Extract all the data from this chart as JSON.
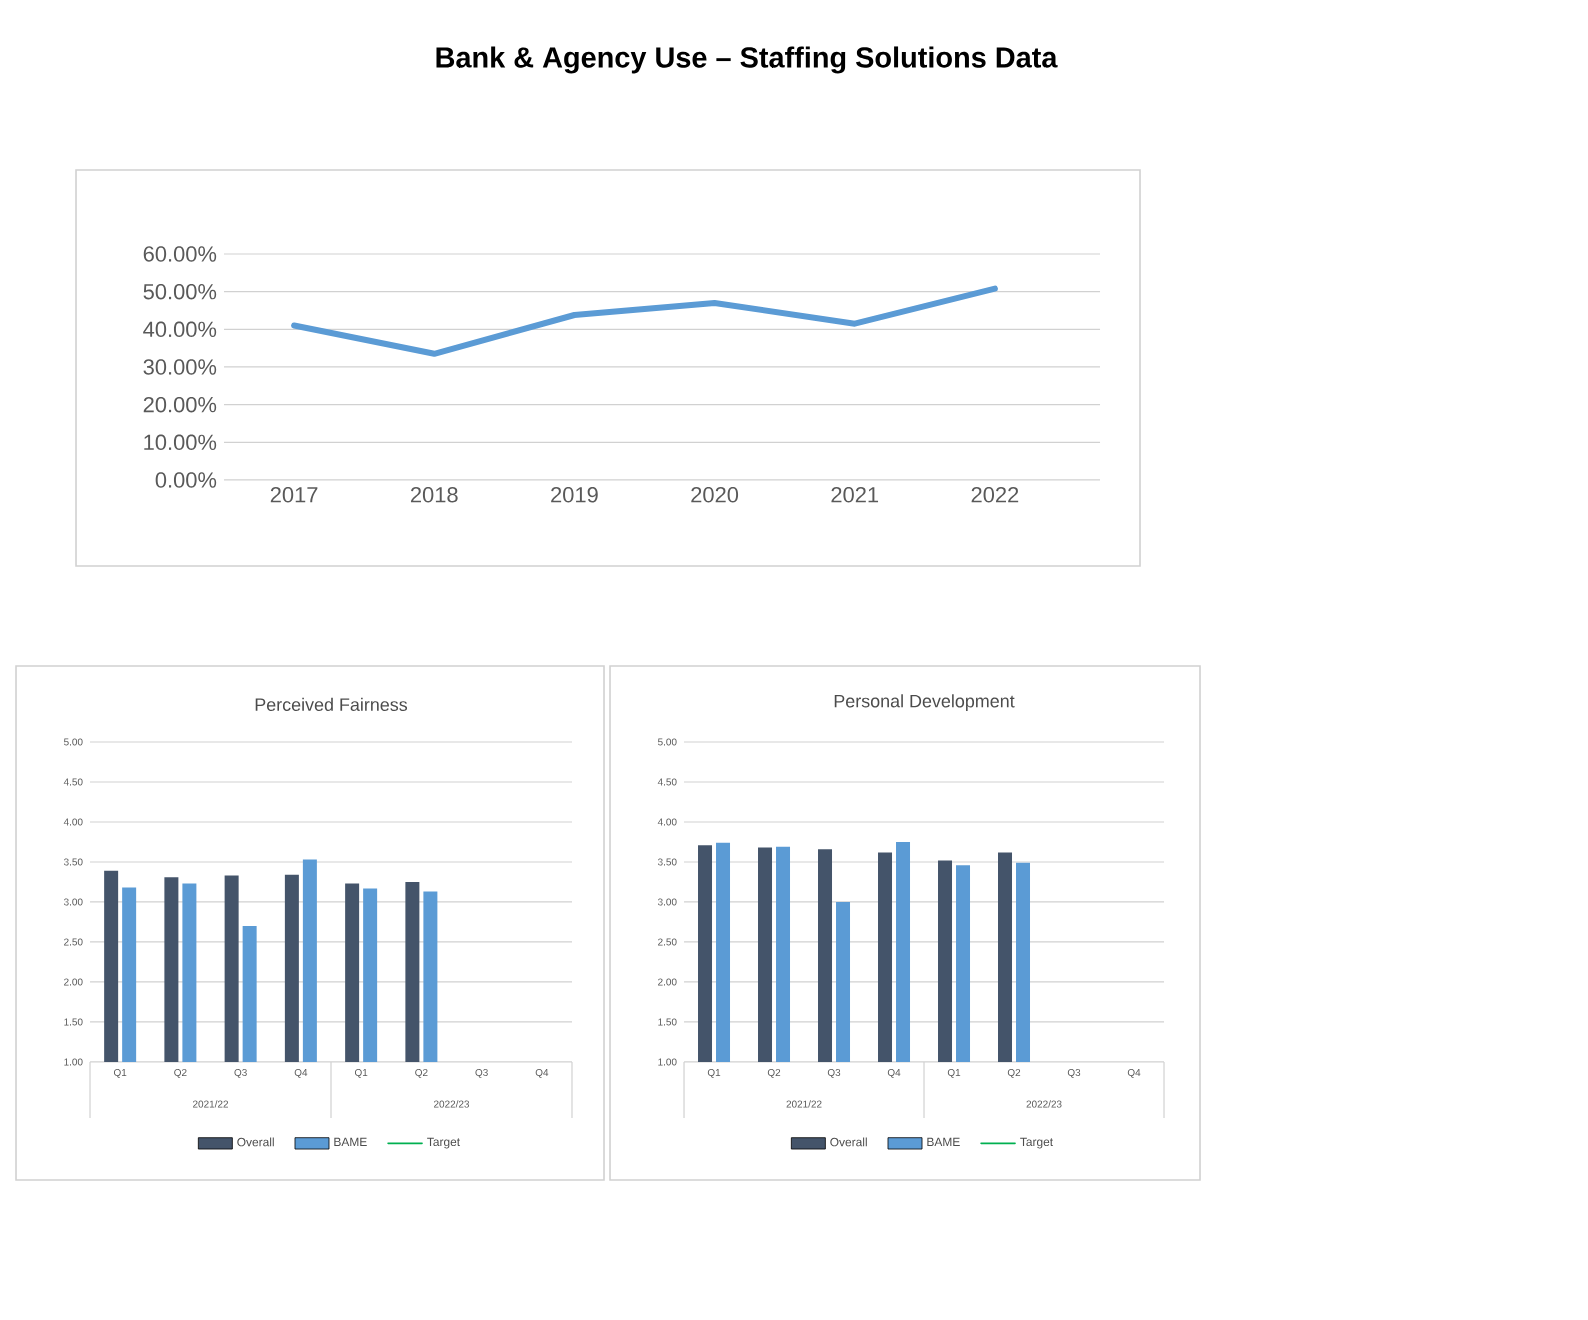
{
  "chart_data": [
    {
      "type": "line",
      "title": "Bank & Agency Use – Staffing Solutions Data",
      "categories": [
        "2017",
        "2018",
        "2019",
        "2020",
        "2021",
        "2022"
      ],
      "series": [
        {
          "color": "#5b9bd5",
          "values": [
            41.0,
            33.5,
            43.8,
            47.0,
            41.5,
            50.8
          ]
        }
      ],
      "ylim": [
        0,
        60
      ],
      "yticks": [
        {
          "value": 0,
          "label": "0.00%"
        },
        {
          "value": 10,
          "label": "10.00%"
        },
        {
          "value": 20,
          "label": "20.00%"
        },
        {
          "value": 30,
          "label": "30.00%"
        },
        {
          "value": 40,
          "label": "40.00%"
        },
        {
          "value": 50,
          "label": "50.00%"
        },
        {
          "value": 60,
          "label": "60.00%"
        }
      ],
      "grid": "y",
      "legend": false
    },
    {
      "type": "bar",
      "title": "Perceived Fairness",
      "categories": [
        "Q1",
        "Q2",
        "Q3",
        "Q4",
        "Q1",
        "Q2",
        "Q3",
        "Q4"
      ],
      "series": [
        {
          "name": "Overall",
          "color": "#44546a",
          "values": [
            3.39,
            3.31,
            3.33,
            3.34,
            3.23,
            3.25,
            null,
            null
          ]
        },
        {
          "name": "BAME",
          "color": "#5b9bd5",
          "values": [
            3.18,
            3.23,
            2.7,
            3.53,
            3.17,
            3.13,
            null,
            null
          ]
        },
        {
          "name": "Target",
          "type": "line",
          "color": "#00b050",
          "values": [
            null,
            null,
            null,
            null,
            null,
            null,
            null,
            null
          ]
        }
      ],
      "ylim": [
        1,
        5
      ],
      "yticks": [
        {
          "value": 1,
          "label": "1.00"
        },
        {
          "value": 1.5,
          "label": "1.50"
        },
        {
          "value": 2,
          "label": "2.00"
        },
        {
          "value": 2.5,
          "label": "2.50"
        },
        {
          "value": 3,
          "label": "3.00"
        },
        {
          "value": 3.5,
          "label": "3.50"
        },
        {
          "value": 4,
          "label": "4.00"
        },
        {
          "value": 4.5,
          "label": "4.50"
        },
        {
          "value": 5,
          "label": "5.00"
        }
      ],
      "annotations": [
        "2021/22",
        "2022/23"
      ],
      "grid": "y",
      "legend": "bottom"
    },
    {
      "type": "bar",
      "title": "Personal Development",
      "categories": [
        "Q1",
        "Q2",
        "Q3",
        "Q4",
        "Q1",
        "Q2",
        "Q3",
        "Q4"
      ],
      "series": [
        {
          "name": "Overall",
          "color": "#44546a",
          "values": [
            3.71,
            3.68,
            3.66,
            3.62,
            3.52,
            3.62,
            null,
            null
          ]
        },
        {
          "name": "BAME",
          "color": "#5b9bd5",
          "values": [
            3.74,
            3.69,
            3.0,
            3.75,
            3.46,
            3.49,
            null,
            null
          ]
        },
        {
          "name": "Target",
          "type": "line",
          "color": "#00b050",
          "values": [
            null,
            null,
            null,
            null,
            null,
            null,
            null,
            null
          ]
        }
      ],
      "ylim": [
        1,
        5
      ],
      "yticks": [
        {
          "value": 1,
          "label": "1.00"
        },
        {
          "value": 1.5,
          "label": "1.50"
        },
        {
          "value": 2,
          "label": "2.00"
        },
        {
          "value": 2.5,
          "label": "2.50"
        },
        {
          "value": 3,
          "label": "3.00"
        },
        {
          "value": 3.5,
          "label": "3.50"
        },
        {
          "value": 4,
          "label": "4.00"
        },
        {
          "value": 4.5,
          "label": "4.50"
        },
        {
          "value": 5,
          "label": "5.00"
        }
      ],
      "annotations": [
        "2021/22",
        "2022/23"
      ],
      "grid": "y",
      "legend": "bottom"
    }
  ]
}
